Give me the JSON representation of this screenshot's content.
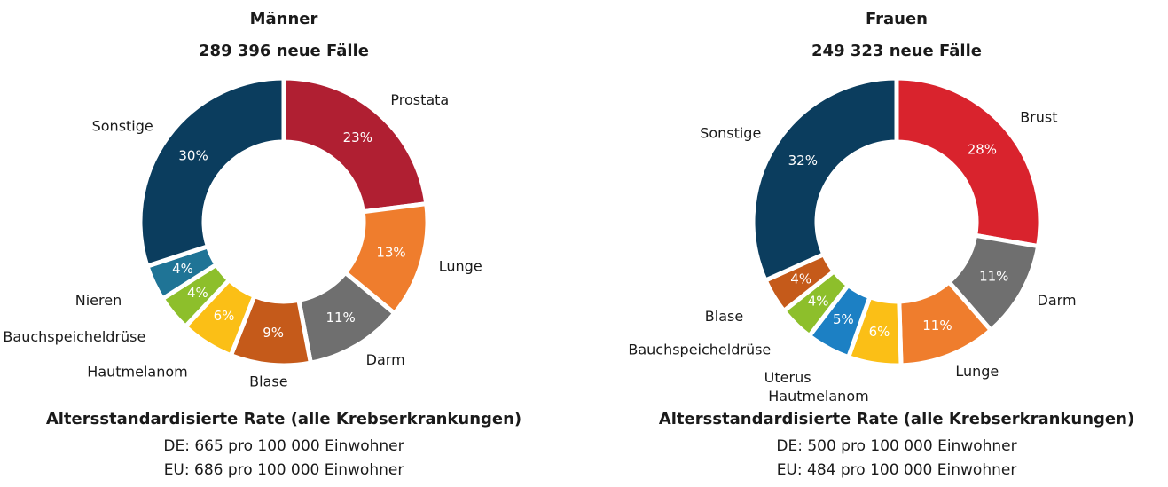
{
  "chart_data": [
    {
      "type": "pie",
      "title": "Männer",
      "subtitle": "289 396 neue Fälle",
      "categories": [
        "Prostata",
        "Lunge",
        "Darm",
        "Blase",
        "Hautmelanom",
        "Bauchspeicheldrüse",
        "Nieren",
        "Sonstige"
      ],
      "values": [
        23,
        13,
        11,
        9,
        6,
        4,
        4,
        30
      ],
      "value_labels": [
        "23%",
        "13%",
        "11%",
        "9%",
        "6%",
        "4%",
        "4%",
        "30%"
      ],
      "colors": [
        "#b01f32",
        "#ef7d2d",
        "#6f6f6f",
        "#c55a1a",
        "#fbbf16",
        "#8dbf2b",
        "#1f7496",
        "#0b3d5e"
      ],
      "annotations": [
        "Altersstandardisierte Rate (alle Krebserkrankungen)",
        "DE: 665 pro 100 000 Einwohner",
        "EU: 686 pro 100 000 Einwohner"
      ]
    },
    {
      "type": "pie",
      "title": "Frauen",
      "subtitle": "249 323 neue Fälle",
      "categories": [
        "Brust",
        "Darm",
        "Lunge",
        "Hautmelanom",
        "Uterus",
        "Bauchspeicheldrüse",
        "Blase",
        "Sonstige"
      ],
      "values": [
        28,
        11,
        11,
        6,
        5,
        4,
        4,
        32
      ],
      "value_labels": [
        "28%",
        "11%",
        "11%",
        "6%",
        "5%",
        "4%",
        "4%",
        "32%"
      ],
      "colors": [
        "#d9232d",
        "#6f6f6f",
        "#ef7d2d",
        "#fbbf16",
        "#1c80c4",
        "#8dbf2b",
        "#c55a1a",
        "#0b3d5e"
      ],
      "annotations": [
        "Altersstandardisierte Rate (alle Krebserkrankungen)",
        "DE: 500 pro 100 000 Einwohner",
        "EU: 484 pro 100 000 Einwohner"
      ]
    }
  ]
}
